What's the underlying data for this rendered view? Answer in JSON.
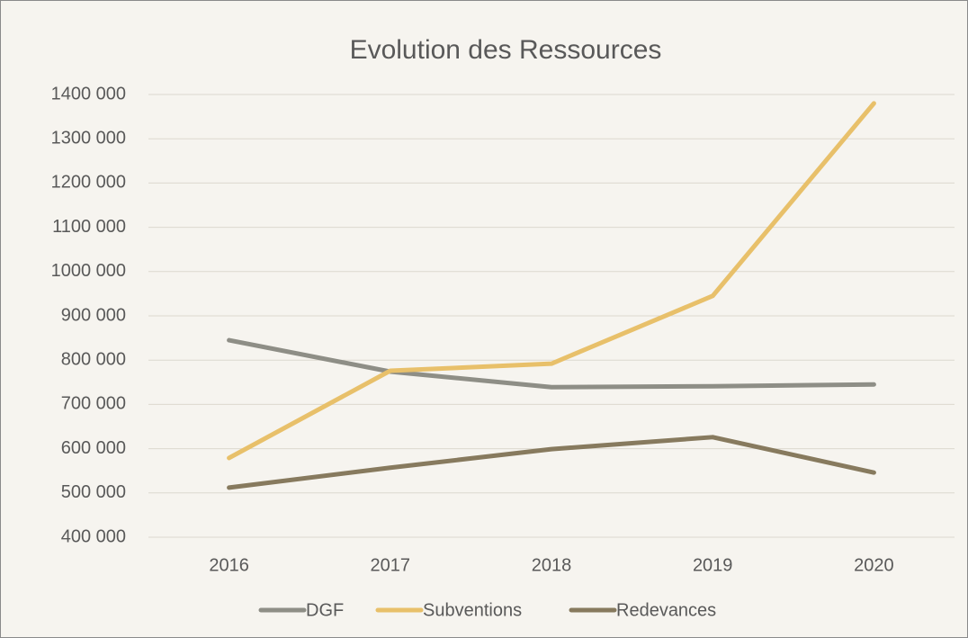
{
  "chart_data": {
    "type": "line",
    "title": "Evolution des Ressources",
    "categories": [
      "2016",
      "2017",
      "2018",
      "2019",
      "2020"
    ],
    "series": [
      {
        "name": "DGF",
        "color": "#8e8e86",
        "values": [
          845000,
          774000,
          739000,
          741000,
          745000
        ]
      },
      {
        "name": "Subventions",
        "color": "#e8c06a",
        "values": [
          579000,
          776000,
          792000,
          945000,
          1380000
        ]
      },
      {
        "name": "Redevances",
        "color": "#877a5e",
        "values": [
          512000,
          557000,
          599000,
          626000,
          546000
        ]
      }
    ],
    "ylim": [
      400000,
      1400000
    ],
    "yticks": [
      {
        "value": 400000,
        "label": "400 000"
      },
      {
        "value": 500000,
        "label": "500 000"
      },
      {
        "value": 600000,
        "label": "600 000"
      },
      {
        "value": 700000,
        "label": "700 000"
      },
      {
        "value": 800000,
        "label": "800 000"
      },
      {
        "value": 900000,
        "label": "900 000"
      },
      {
        "value": 1000000,
        "label": "1000 000"
      },
      {
        "value": 1100000,
        "label": "1100 000"
      },
      {
        "value": 1200000,
        "label": "1200 000"
      },
      {
        "value": 1300000,
        "label": "1300 000"
      },
      {
        "value": 1400000,
        "label": "1400 000"
      }
    ],
    "grid": true,
    "legend": "bottom"
  }
}
